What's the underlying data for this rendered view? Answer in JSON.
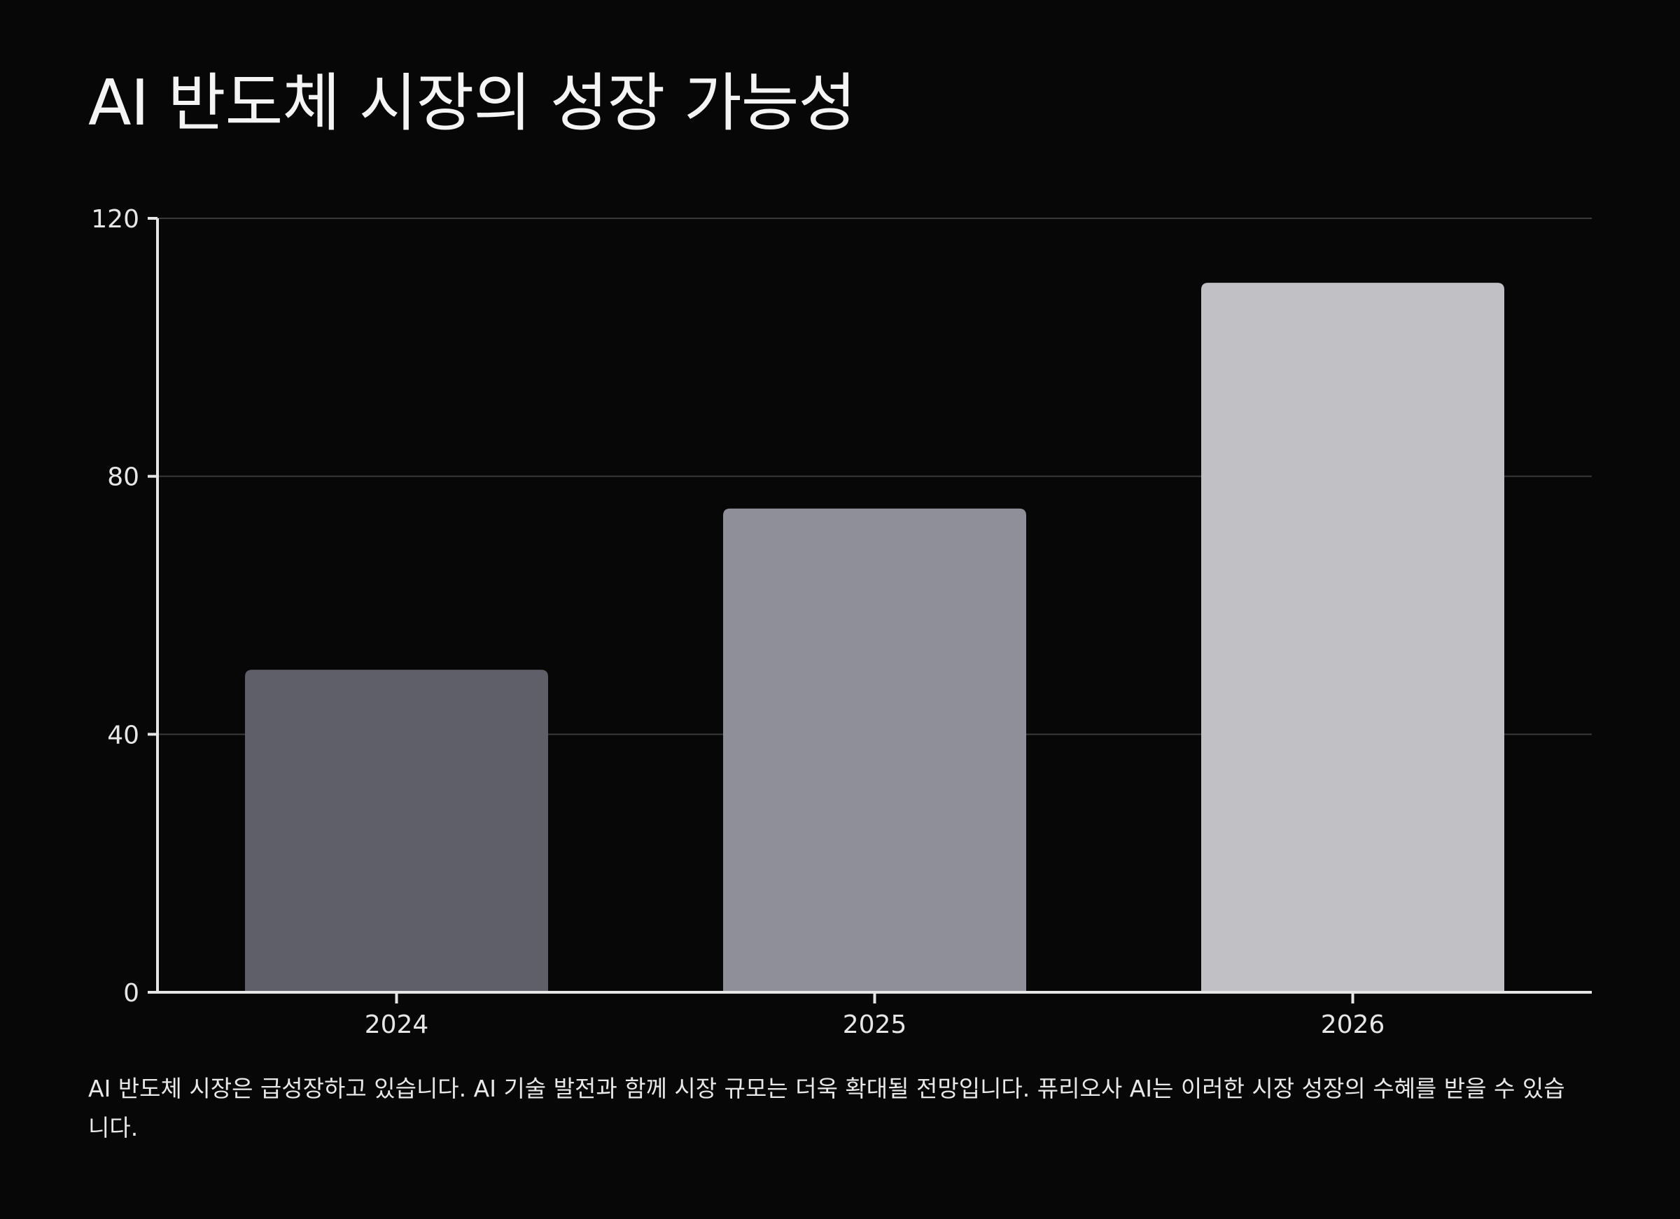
{
  "colors": {
    "background": "#070707",
    "axis": "#e6e6e6",
    "grid": "#3a3a3a",
    "text": "#f2f2f2"
  },
  "chart_data": {
    "type": "bar",
    "title": "AI 반도체 시장의 성장 가능성",
    "xlabel": "",
    "ylabel": "",
    "categories": [
      "2024",
      "2025",
      "2026"
    ],
    "values": [
      50,
      75,
      110
    ],
    "bar_colors": [
      "#5f5f69",
      "#8f8f99",
      "#c1c0c5"
    ],
    "ylim": [
      0,
      120
    ],
    "yticks": [
      "0",
      "40",
      "80",
      "120"
    ],
    "grid": true,
    "legend": "none"
  },
  "caption": "AI 반도체 시장은 급성장하고 있습니다. AI 기술 발전과 함께 시장 규모는 더욱 확대될 전망입니다. 퓨리오사 AI는 이러한 시장 성장의 수혜를 받을 수 있습니다."
}
